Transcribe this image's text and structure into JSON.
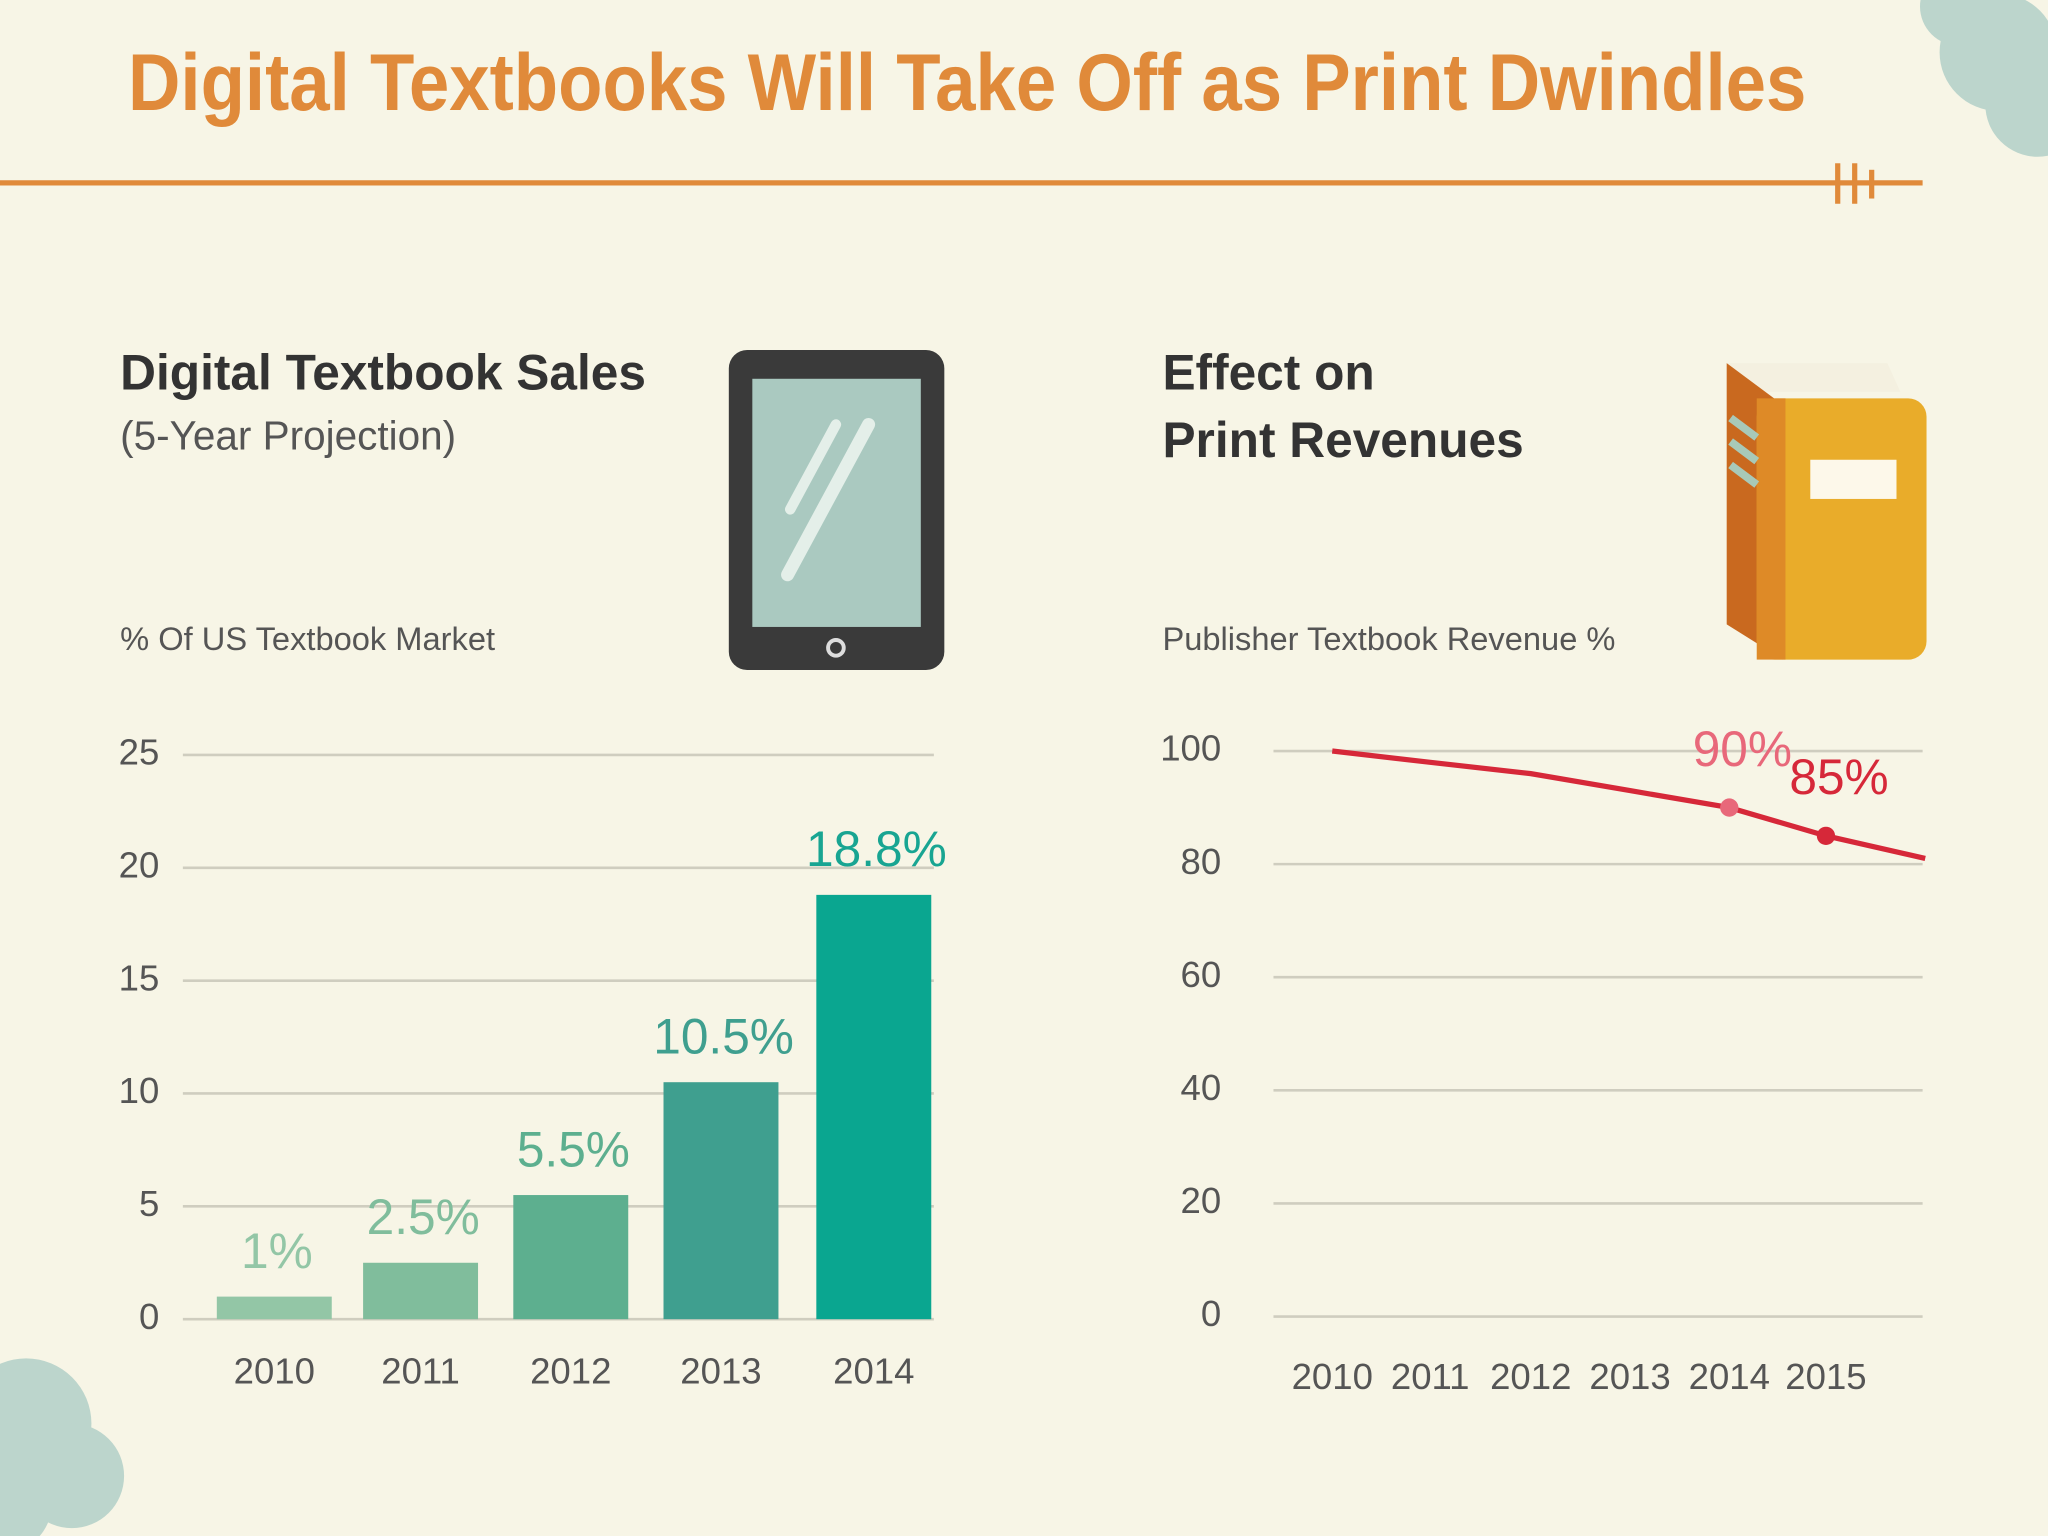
{
  "title": "Digital Textbooks Will Take Off as Print Dwindles",
  "chart_data": [
    {
      "type": "bar",
      "title": [
        "Digital Textbook Sales"
      ],
      "subtitle": "(5-Year Projection)",
      "y_label": "% Of US Textbook Market",
      "categories": [
        "2010",
        "2011",
        "2012",
        "2013",
        "2014"
      ],
      "values": [
        1,
        2.5,
        5.5,
        10.5,
        18.8
      ],
      "value_labels": [
        "1%",
        "2.5%",
        "5.5%",
        "10.5%",
        "18.8%"
      ],
      "colors": [
        "#93c6a6",
        "#80bd9c",
        "#5daf8f",
        "#3f9f8f",
        "#0aa690"
      ],
      "label_colors": [
        "#93c6a6",
        "#80bd9c",
        "#5daf8f",
        "#3f9f8f",
        "#18a592"
      ],
      "ylim": [
        0,
        25
      ],
      "yticks": [
        0,
        5,
        10,
        15,
        20,
        25
      ],
      "grid": true
    },
    {
      "type": "line",
      "title": [
        "Effect on",
        "Print Revenues"
      ],
      "y_label": "Publisher Textbook Revenue %",
      "categories": [
        "2010",
        "2011",
        "2012",
        "2013",
        "2014",
        "2015",
        null
      ],
      "values": [
        100,
        98,
        96,
        93,
        90,
        85,
        81
      ],
      "value_labels": [
        null,
        null,
        null,
        null,
        "90%",
        "85%",
        null
      ],
      "color": "#d62839",
      "point_colors": [
        null,
        null,
        null,
        null,
        "#e8687a",
        "#d62839",
        null
      ],
      "ylim": [
        0,
        100
      ],
      "yticks": [
        0,
        20,
        40,
        60,
        80,
        100
      ],
      "grid": true
    }
  ]
}
